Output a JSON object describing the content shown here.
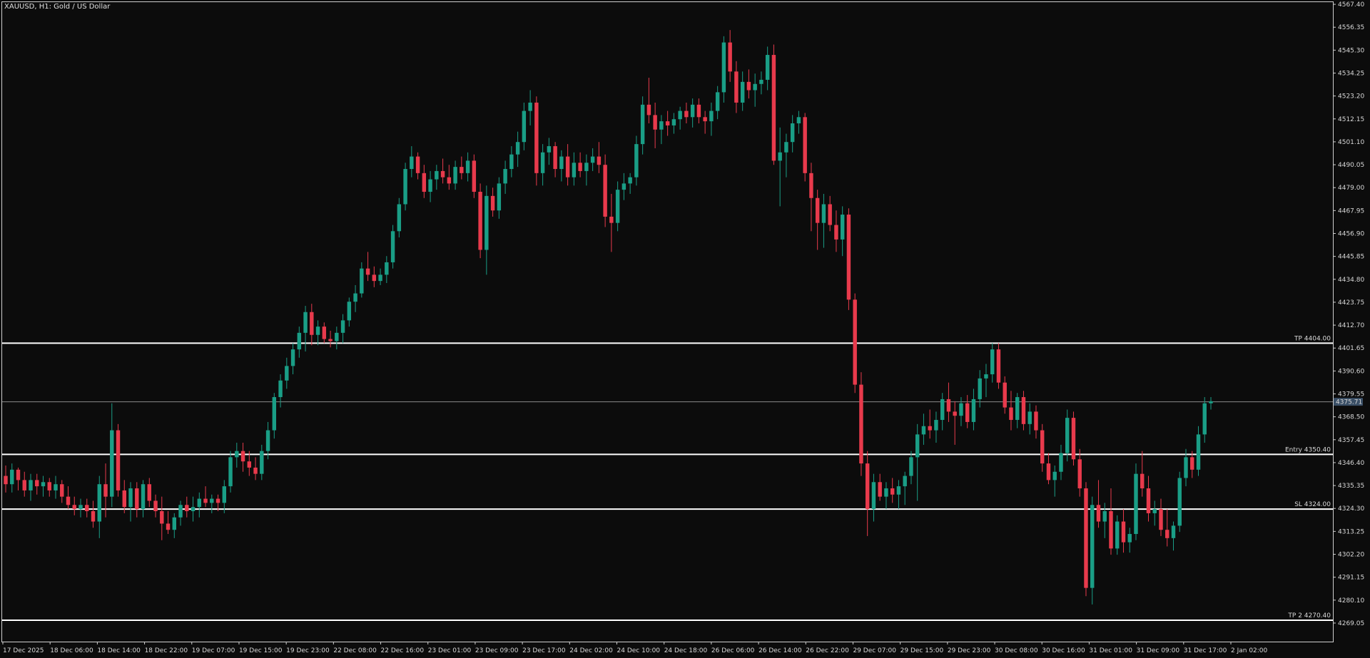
{
  "chart_title": "XAUUSD, H1:  Gold / US Dollar",
  "current_price_label": "4375.71",
  "colors": {
    "background": "#0c0c0c",
    "bull": "#1a9e86",
    "bear": "#e83a4c",
    "frame": "#cfcfcf",
    "text": "#d8d8d8",
    "level_line": "#ffffff",
    "price_box": "#3a4f66"
  },
  "chart_data": {
    "type": "candlestick",
    "ylim": [
      4260.1,
      4568.45
    ],
    "y_ticks": [
      "4567.40",
      "4556.35",
      "4545.30",
      "4534.25",
      "4523.20",
      "4512.15",
      "4501.10",
      "4490.05",
      "4479.00",
      "4467.95",
      "4456.90",
      "4445.85",
      "4434.80",
      "4423.75",
      "4412.70",
      "4401.65",
      "4390.60",
      "4379.55",
      "4368.50",
      "4357.45",
      "4346.40",
      "4335.35",
      "4324.30",
      "4313.25",
      "4302.20",
      "4291.15",
      "4280.10",
      "4269.05"
    ],
    "x_labels": [
      "17 Dec 2025",
      "18 Dec 06:00",
      "18 Dec 14:00",
      "18 Dec 22:00",
      "19 Dec 07:00",
      "19 Dec 15:00",
      "19 Dec 23:00",
      "22 Dec 08:00",
      "22 Dec 16:00",
      "23 Dec 01:00",
      "23 Dec 09:00",
      "23 Dec 17:00",
      "24 Dec 02:00",
      "24 Dec 10:00",
      "24 Dec 18:00",
      "26 Dec 06:00",
      "26 Dec 14:00",
      "26 Dec 22:00",
      "29 Dec 07:00",
      "29 Dec 15:00",
      "29 Dec 23:00",
      "30 Dec 08:00",
      "30 Dec 16:00",
      "31 Dec 01:00",
      "31 Dec 09:00",
      "31 Dec 17:00",
      "2 Jan 02:00"
    ],
    "levels": [
      {
        "label": "TP 4404.00",
        "value": 4404.0
      },
      {
        "label": "Entry 4350.40",
        "value": 4350.4
      },
      {
        "label": "SL 4324.00",
        "value": 4324.0
      },
      {
        "label": "TP 2 4270.40",
        "value": 4270.4
      }
    ],
    "current_price": 4375.71,
    "candles": [
      [
        4340,
        4345,
        4332,
        4336
      ],
      [
        4336,
        4346,
        4332,
        4343
      ],
      [
        4343,
        4344,
        4333,
        4338
      ],
      [
        4338,
        4342,
        4330,
        4333
      ],
      [
        4333,
        4341,
        4328,
        4338
      ],
      [
        4338,
        4341,
        4331,
        4335
      ],
      [
        4335,
        4340,
        4330,
        4337
      ],
      [
        4337,
        4339,
        4330,
        4333
      ],
      [
        4333,
        4340,
        4329,
        4336
      ],
      [
        4336,
        4338,
        4327,
        4330
      ],
      [
        4330,
        4335,
        4324,
        4326
      ],
      [
        4326,
        4330,
        4321,
        4324
      ],
      [
        4324,
        4329,
        4320,
        4326
      ],
      [
        4326,
        4329,
        4320,
        4323
      ],
      [
        4323,
        4328,
        4315,
        4318
      ],
      [
        4318,
        4340,
        4310,
        4336
      ],
      [
        4336,
        4346,
        4320,
        4330
      ],
      [
        4330,
        4375,
        4325,
        4362
      ],
      [
        4362,
        4365,
        4330,
        4333
      ],
      [
        4333,
        4338,
        4322,
        4325
      ],
      [
        4325,
        4337,
        4318,
        4334
      ],
      [
        4334,
        4337,
        4320,
        4324
      ],
      [
        4324,
        4338,
        4320,
        4336
      ],
      [
        4336,
        4339,
        4325,
        4328
      ],
      [
        4328,
        4331,
        4320,
        4323
      ],
      [
        4323,
        4330,
        4309,
        4317
      ],
      [
        4317,
        4323,
        4312,
        4314
      ],
      [
        4314,
        4322,
        4310,
        4320
      ],
      [
        4320,
        4328,
        4316,
        4326
      ],
      [
        4326,
        4330,
        4320,
        4323
      ],
      [
        4323,
        4330,
        4318,
        4325
      ],
      [
        4325,
        4332,
        4320,
        4329
      ],
      [
        4329,
        4335,
        4325,
        4327
      ],
      [
        4327,
        4331,
        4322,
        4329
      ],
      [
        4329,
        4331,
        4323,
        4327
      ],
      [
        4327,
        4338,
        4322,
        4335
      ],
      [
        4335,
        4352,
        4332,
        4349
      ],
      [
        4349,
        4356,
        4344,
        4352
      ],
      [
        4352,
        4356,
        4342,
        4347
      ],
      [
        4347,
        4352,
        4340,
        4344
      ],
      [
        4344,
        4349,
        4338,
        4341
      ],
      [
        4341,
        4355,
        4338,
        4352
      ],
      [
        4352,
        4366,
        4348,
        4362
      ],
      [
        4362,
        4380,
        4358,
        4378
      ],
      [
        4378,
        4389,
        4373,
        4386
      ],
      [
        4386,
        4397,
        4382,
        4393
      ],
      [
        4393,
        4404,
        4389,
        4401
      ],
      [
        4401,
        4412,
        4397,
        4409
      ],
      [
        4409,
        4422,
        4400,
        4419
      ],
      [
        4419,
        4423,
        4403,
        4408
      ],
      [
        4408,
        4415,
        4403,
        4412
      ],
      [
        4412,
        4414,
        4404,
        4406
      ],
      [
        4406,
        4410,
        4402,
        4405
      ],
      [
        4405,
        4412,
        4401,
        4409
      ],
      [
        4409,
        4418,
        4404,
        4415
      ],
      [
        4415,
        4426,
        4412,
        4424
      ],
      [
        4424,
        4432,
        4419,
        4428
      ],
      [
        4428,
        4443,
        4426,
        4440
      ],
      [
        4440,
        4448,
        4434,
        4437
      ],
      [
        4437,
        4441,
        4431,
        4434
      ],
      [
        4434,
        4440,
        4432,
        4437
      ],
      [
        4437,
        4446,
        4433,
        4443
      ],
      [
        4443,
        4461,
        4440,
        4458
      ],
      [
        4458,
        4474,
        4455,
        4471
      ],
      [
        4471,
        4491,
        4468,
        4488
      ],
      [
        4488,
        4499,
        4484,
        4494
      ],
      [
        4494,
        4496,
        4483,
        4486
      ],
      [
        4486,
        4490,
        4474,
        4477
      ],
      [
        4477,
        4487,
        4472,
        4483
      ],
      [
        4483,
        4490,
        4478,
        4487
      ],
      [
        4487,
        4493,
        4481,
        4484
      ],
      [
        4484,
        4490,
        4478,
        4481
      ],
      [
        4481,
        4492,
        4478,
        4489
      ],
      [
        4489,
        4494,
        4483,
        4486
      ],
      [
        4486,
        4496,
        4482,
        4492
      ],
      [
        4492,
        4495,
        4474,
        4477
      ],
      [
        4477,
        4481,
        4445,
        4449
      ],
      [
        4449,
        4480,
        4437,
        4475
      ],
      [
        4475,
        4479,
        4465,
        4468
      ],
      [
        4468,
        4484,
        4464,
        4481
      ],
      [
        4481,
        4492,
        4476,
        4488
      ],
      [
        4488,
        4499,
        4484,
        4495
      ],
      [
        4495,
        4506,
        4489,
        4501
      ],
      [
        4501,
        4520,
        4497,
        4516
      ],
      [
        4516,
        4526,
        4509,
        4520
      ],
      [
        4520,
        4523,
        4480,
        4486
      ],
      [
        4486,
        4500,
        4480,
        4496
      ],
      [
        4496,
        4503,
        4490,
        4499
      ],
      [
        4499,
        4501,
        4484,
        4488
      ],
      [
        4488,
        4497,
        4482,
        4494
      ],
      [
        4494,
        4500,
        4480,
        4484
      ],
      [
        4484,
        4496,
        4480,
        4491
      ],
      [
        4491,
        4496,
        4484,
        4487
      ],
      [
        4487,
        4495,
        4480,
        4491
      ],
      [
        4491,
        4498,
        4487,
        4494
      ],
      [
        4494,
        4501,
        4486,
        4490
      ],
      [
        4490,
        4495,
        4460,
        4465
      ],
      [
        4465,
        4476,
        4448,
        4462
      ],
      [
        4462,
        4482,
        4458,
        4478
      ],
      [
        4478,
        4486,
        4473,
        4481
      ],
      [
        4481,
        4486,
        4476,
        4484
      ],
      [
        4484,
        4504,
        4480,
        4500
      ],
      [
        4500,
        4523,
        4495,
        4519
      ],
      [
        4519,
        4532,
        4510,
        4514
      ],
      [
        4514,
        4520,
        4498,
        4507
      ],
      [
        4507,
        4514,
        4500,
        4511
      ],
      [
        4511,
        4516,
        4504,
        4509
      ],
      [
        4509,
        4515,
        4505,
        4512
      ],
      [
        4512,
        4518,
        4507,
        4516
      ],
      [
        4516,
        4520,
        4510,
        4513
      ],
      [
        4513,
        4522,
        4508,
        4519
      ],
      [
        4519,
        4522,
        4510,
        4513
      ],
      [
        4513,
        4516,
        4505,
        4511
      ],
      [
        4511,
        4520,
        4504,
        4516
      ],
      [
        4516,
        4528,
        4512,
        4525
      ],
      [
        4525,
        4552,
        4520,
        4549
      ],
      [
        4549,
        4555,
        4530,
        4535
      ],
      [
        4535,
        4540,
        4515,
        4520
      ],
      [
        4520,
        4535,
        4516,
        4530
      ],
      [
        4530,
        4536,
        4522,
        4526
      ],
      [
        4526,
        4534,
        4518,
        4529
      ],
      [
        4529,
        4535,
        4524,
        4531
      ],
      [
        4531,
        4547,
        4526,
        4543
      ],
      [
        4543,
        4548,
        4490,
        4492
      ],
      [
        4492,
        4508,
        4470,
        4496
      ],
      [
        4496,
        4505,
        4484,
        4501
      ],
      [
        4501,
        4514,
        4496,
        4510
      ],
      [
        4510,
        4516,
        4505,
        4513
      ],
      [
        4513,
        4515,
        4482,
        4486
      ],
      [
        4486,
        4491,
        4458,
        4474
      ],
      [
        4474,
        4478,
        4449,
        4462
      ],
      [
        4462,
        4476,
        4450,
        4471
      ],
      [
        4471,
        4475,
        4458,
        4461
      ],
      [
        4461,
        4468,
        4448,
        4454
      ],
      [
        4454,
        4470,
        4446,
        4466
      ],
      [
        4466,
        4469,
        4420,
        4425
      ],
      [
        4425,
        4428,
        4380,
        4384
      ],
      [
        4384,
        4390,
        4340,
        4346
      ],
      [
        4346,
        4352,
        4311,
        4324
      ],
      [
        4324,
        4341,
        4318,
        4337
      ],
      [
        4337,
        4341,
        4328,
        4330
      ],
      [
        4330,
        4337,
        4324,
        4334
      ],
      [
        4334,
        4339,
        4327,
        4331
      ],
      [
        4331,
        4338,
        4324,
        4335
      ],
      [
        4335,
        4342,
        4326,
        4340
      ],
      [
        4340,
        4352,
        4336,
        4349
      ],
      [
        4349,
        4365,
        4328,
        4360
      ],
      [
        4360,
        4370,
        4355,
        4364
      ],
      [
        4364,
        4372,
        4358,
        4362
      ],
      [
        4362,
        4371,
        4356,
        4367
      ],
      [
        4367,
        4380,
        4362,
        4377
      ],
      [
        4377,
        4385,
        4366,
        4371
      ],
      [
        4371,
        4376,
        4355,
        4369
      ],
      [
        4369,
        4378,
        4364,
        4375
      ],
      [
        4375,
        4379,
        4363,
        4366
      ],
      [
        4366,
        4382,
        4362,
        4377
      ],
      [
        4377,
        4391,
        4373,
        4387
      ],
      [
        4387,
        4394,
        4378,
        4389
      ],
      [
        4389,
        4404,
        4385,
        4401
      ],
      [
        4401,
        4404,
        4382,
        4385
      ],
      [
        4385,
        4388,
        4370,
        4373
      ],
      [
        4373,
        4381,
        4362,
        4367
      ],
      [
        4367,
        4380,
        4363,
        4378
      ],
      [
        4378,
        4381,
        4362,
        4365
      ],
      [
        4365,
        4375,
        4360,
        4371
      ],
      [
        4371,
        4374,
        4358,
        4362
      ],
      [
        4362,
        4365,
        4342,
        4346
      ],
      [
        4346,
        4351,
        4336,
        4338
      ],
      [
        4338,
        4345,
        4330,
        4342
      ],
      [
        4342,
        4355,
        4338,
        4351
      ],
      [
        4351,
        4372,
        4347,
        4368
      ],
      [
        4368,
        4371,
        4345,
        4348
      ],
      [
        4348,
        4353,
        4330,
        4334
      ],
      [
        4334,
        4337,
        4282,
        4286
      ],
      [
        4286,
        4330,
        4278,
        4326
      ],
      [
        4326,
        4338,
        4315,
        4318
      ],
      [
        4318,
        4327,
        4310,
        4323
      ],
      [
        4323,
        4334,
        4302,
        4305
      ],
      [
        4305,
        4321,
        4302,
        4318
      ],
      [
        4318,
        4324,
        4303,
        4308
      ],
      [
        4308,
        4315,
        4303,
        4312
      ],
      [
        4312,
        4346,
        4309,
        4341
      ],
      [
        4341,
        4352,
        4330,
        4334
      ],
      [
        4334,
        4340,
        4318,
        4322
      ],
      [
        4322,
        4328,
        4316,
        4324
      ],
      [
        4324,
        4329,
        4311,
        4314
      ],
      [
        4314,
        4324,
        4306,
        4310
      ],
      [
        4310,
        4318,
        4304,
        4316
      ],
      [
        4316,
        4342,
        4313,
        4339
      ],
      [
        4339,
        4353,
        4335,
        4349
      ],
      [
        4349,
        4352,
        4339,
        4343
      ],
      [
        4343,
        4364,
        4340,
        4360
      ],
      [
        4360,
        4378,
        4356,
        4375
      ],
      [
        4375,
        4378,
        4372,
        4376
      ]
    ]
  }
}
